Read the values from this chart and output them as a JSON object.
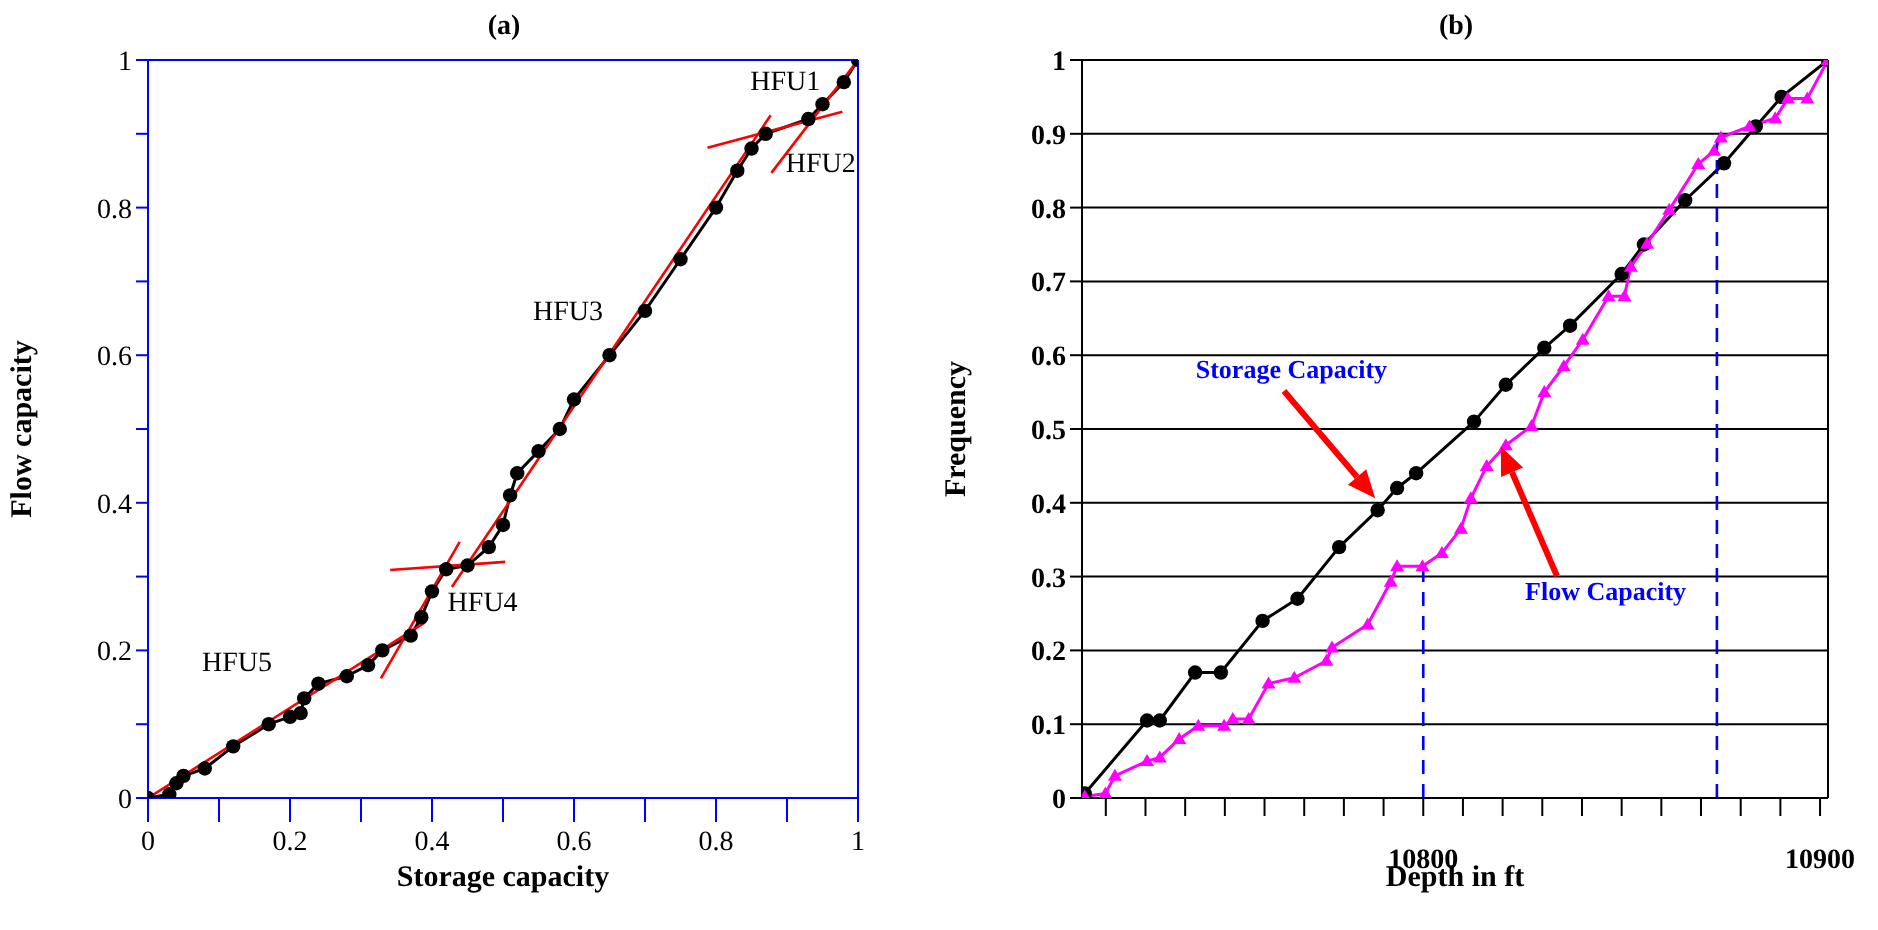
{
  "chart_data": [
    {
      "type": "line",
      "title": "(a)",
      "xlabel": "Storage capacity",
      "ylabel": "Flow capacity",
      "xlim": [
        0,
        1
      ],
      "ylim": [
        0,
        1
      ],
      "xticks": [
        0,
        {
          "value": 0.1,
          "label": null
        },
        0.2,
        {
          "value": 0.3,
          "label": null
        },
        0.4,
        {
          "value": 0.5,
          "label": null
        },
        0.6,
        {
          "value": 0.7,
          "label": null
        },
        0.8,
        {
          "value": 0.9,
          "label": null
        },
        1
      ],
      "yticks": [
        0,
        {
          "value": 0.1,
          "label": null
        },
        0.2,
        {
          "value": 0.3,
          "label": null
        },
        0.4,
        {
          "value": 0.5,
          "label": null
        },
        0.6,
        {
          "value": 0.7,
          "label": null
        },
        0.8,
        {
          "value": 0.9,
          "label": null
        },
        1
      ],
      "series": [
        {
          "color": "#000000",
          "marker": "circle",
          "x": [
            0,
            0.03,
            0.04,
            0.05,
            0.08,
            0.12,
            0.17,
            0.2,
            0.215,
            0.22,
            0.24,
            0.28,
            0.31,
            0.33,
            0.37,
            0.385,
            0.4,
            0.42,
            0.45,
            0.48,
            0.5,
            0.51,
            0.52,
            0.55,
            0.58,
            0.6,
            0.65,
            0.7,
            0.75,
            0.8,
            0.83,
            0.85,
            0.87,
            0.93,
            0.95,
            0.98,
            1
          ],
          "values": [
            0,
            0.005,
            0.02,
            0.03,
            0.04,
            0.07,
            0.1,
            0.11,
            0.115,
            0.135,
            0.155,
            0.165,
            0.18,
            0.2,
            0.22,
            0.245,
            0.28,
            0.31,
            0.315,
            0.34,
            0.37,
            0.41,
            0.44,
            0.47,
            0.5,
            0.54,
            0.6,
            0.66,
            0.73,
            0.8,
            0.85,
            0.88,
            0.9,
            0.92,
            0.94,
            0.97,
            1
          ]
        },
        {
          "type": "line",
          "color": "#ff0000",
          "marker": "none",
          "x": [
            0,
            0.39
          ],
          "values": [
            0,
            0.238
          ]
        },
        {
          "type": "line",
          "color": "#ff0000",
          "marker": "none",
          "x": [
            0.328,
            0.439
          ],
          "values": [
            0.162,
            0.347
          ]
        },
        {
          "type": "line",
          "color": "#ff0000",
          "marker": "none",
          "x": [
            0.341,
            0.503
          ],
          "values": [
            0.309,
            0.32
          ]
        },
        {
          "type": "line",
          "color": "#ff0000",
          "marker": "none",
          "x": [
            0.428,
            0.877
          ],
          "values": [
            0.286,
            0.925
          ]
        },
        {
          "type": "line",
          "color": "#ff0000",
          "marker": "none",
          "x": [
            0.788,
            0.978
          ],
          "values": [
            0.881,
            0.93
          ]
        },
        {
          "type": "line",
          "color": "#ff0000",
          "marker": "none",
          "x": [
            0.878,
            1
          ],
          "values": [
            0.847,
            1
          ]
        }
      ],
      "annotations": [
        "HFU1",
        "HFU2",
        "HFU3",
        "HFU4",
        "HFU5"
      ]
    },
    {
      "type": "line",
      "title": "(b)",
      "xlabel": "Depth in ft",
      "ylabel": "Frequency",
      "xlim": [
        10714,
        10902
      ],
      "ylim": [
        0,
        1
      ],
      "grid": "y",
      "xticks": [
        {
          "value": 10720,
          "label": null
        },
        {
          "value": 10730,
          "label": null
        },
        {
          "value": 10740,
          "label": null
        },
        {
          "value": 10750,
          "label": null
        },
        {
          "value": 10760,
          "label": null
        },
        {
          "value": 10770,
          "label": null
        },
        {
          "value": 10780,
          "label": null
        },
        {
          "value": 10790,
          "label": null
        },
        10800,
        {
          "value": 10810,
          "label": null
        },
        {
          "value": 10820,
          "label": null
        },
        {
          "value": 10830,
          "label": null
        },
        {
          "value": 10840,
          "label": null
        },
        {
          "value": 10850,
          "label": null
        },
        {
          "value": 10860,
          "label": null
        },
        {
          "value": 10870,
          "label": null
        },
        {
          "value": 10880,
          "label": null
        },
        {
          "value": 10890,
          "label": null
        },
        10900
      ],
      "yticks": [
        0,
        0.1,
        0.2,
        0.3,
        0.4,
        0.5,
        0.6,
        0.7,
        0.8,
        0.9,
        1
      ],
      "series": [
        {
          "color": "#000000",
          "marker": "circle",
          "x": [
            10714.7,
            10730.4,
            10733.6,
            10742.5,
            10749,
            10759.5,
            10768.3,
            10778.8,
            10788.5,
            10793.4,
            10798.2,
            10812.8,
            10820.8,
            10830.5,
            10837,
            10850,
            10855.6,
            10866,
            10875.8,
            10883.8,
            10890.3,
            10902
          ],
          "values": [
            0.006,
            0.105,
            0.105,
            0.17,
            0.17,
            0.24,
            0.27,
            0.34,
            0.39,
            0.42,
            0.44,
            0.51,
            0.56,
            0.61,
            0.64,
            0.71,
            0.75,
            0.81,
            0.86,
            0.91,
            0.95,
            1
          ]
        },
        {
          "color": "#ff00ff",
          "marker": "triangle",
          "x": [
            10714.7,
            10719.9,
            10722.3,
            10730.4,
            10733.6,
            10738.5,
            10743.3,
            10749.8,
            10752,
            10756,
            10761,
            10767.5,
            10775.6,
            10777,
            10786,
            10791.8,
            10793.4,
            10799.8,
            10804.7,
            10809.5,
            10812,
            10816,
            10820.8,
            10827.3,
            10830.5,
            10835.4,
            10840.2,
            10846.7,
            10850.7,
            10852.3,
            10856.4,
            10862,
            10869.3,
            10873.3,
            10875,
            10882.2,
            10888.7,
            10891.9,
            10896.8,
            10902
          ],
          "values": [
            0.002,
            0.006,
            0.03,
            0.05,
            0.055,
            0.08,
            0.098,
            0.098,
            0.107,
            0.107,
            0.155,
            0.163,
            0.186,
            0.204,
            0.235,
            0.293,
            0.314,
            0.314,
            0.332,
            0.365,
            0.406,
            0.45,
            0.478,
            0.504,
            0.55,
            0.585,
            0.621,
            0.68,
            0.68,
            0.72,
            0.751,
            0.797,
            0.859,
            0.877,
            0.895,
            0.91,
            0.921,
            0.948,
            0.948,
            1
          ]
        },
        {
          "type": "line",
          "color": "#0000ff",
          "marker": "none",
          "line_style": "dashed",
          "x": [
            10800,
            10800
          ],
          "values": [
            0,
            0.314
          ]
        },
        {
          "type": "line",
          "color": "#0000ff",
          "marker": "none",
          "line_style": "dashed",
          "x": [
            10874,
            10874
          ],
          "values": [
            0,
            0.89
          ]
        }
      ],
      "annotations": [
        "Storage Capacity",
        "Flow Capacity"
      ]
    }
  ]
}
